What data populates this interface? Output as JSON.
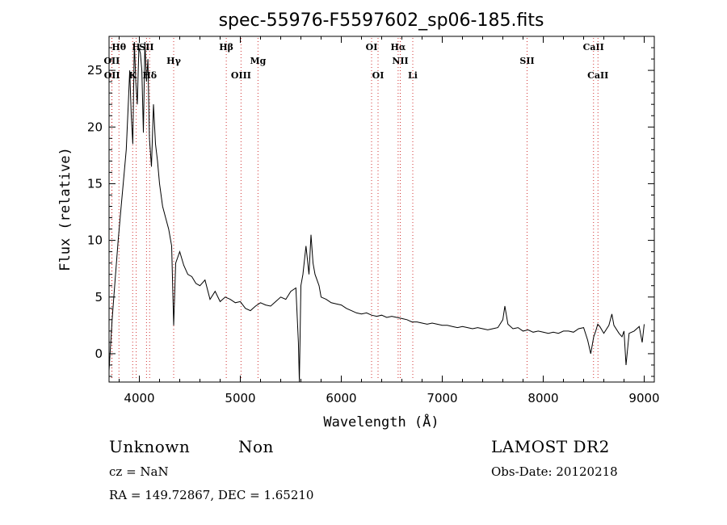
{
  "chart_data": {
    "type": "line",
    "title": "spec-55976-F5597602_sp06-185.fits",
    "xlabel": "Wavelength (Å)",
    "ylabel": "Flux (relative)",
    "xlim": [
      3700,
      9100
    ],
    "ylim": [
      -2.5,
      28
    ],
    "x_ticks": [
      4000,
      5000,
      6000,
      7000,
      8000,
      9000
    ],
    "y_ticks": [
      0,
      5,
      10,
      15,
      20,
      25
    ],
    "grid": false,
    "series": [
      {
        "x": [
          3700,
          3730,
          3760,
          3790,
          3820,
          3850,
          3870,
          3890,
          3905,
          3920,
          3935,
          3950,
          3965,
          3980,
          3995,
          4010,
          4025,
          4040,
          4055,
          4070,
          4085,
          4100,
          4120,
          4140,
          4160,
          4180,
          4200,
          4230,
          4260,
          4290,
          4320,
          4340,
          4360,
          4400,
          4440,
          4480,
          4520,
          4560,
          4600,
          4650,
          4700,
          4750,
          4800,
          4850,
          4900,
          4950,
          5000,
          5050,
          5100,
          5150,
          5200,
          5250,
          5300,
          5350,
          5400,
          5450,
          5500,
          5550,
          5575,
          5585,
          5600,
          5620,
          5650,
          5680,
          5700,
          5720,
          5740,
          5760,
          5780,
          5800,
          5850,
          5900,
          5950,
          6000,
          6050,
          6100,
          6150,
          6200,
          6250,
          6300,
          6350,
          6400,
          6450,
          6500,
          6550,
          6600,
          6650,
          6700,
          6750,
          6800,
          6850,
          6900,
          6950,
          7000,
          7050,
          7100,
          7150,
          7200,
          7250,
          7300,
          7350,
          7400,
          7450,
          7500,
          7550,
          7600,
          7620,
          7650,
          7700,
          7750,
          7800,
          7850,
          7900,
          7950,
          8000,
          8050,
          8100,
          8150,
          8200,
          8250,
          8300,
          8350,
          8400,
          8440,
          8470,
          8500,
          8520,
          8540,
          8560,
          8600,
          8650,
          8680,
          8700,
          8750,
          8780,
          8800,
          8820,
          8850,
          8900,
          8950,
          8980,
          9000
        ],
        "y": [
          -1.5,
          3,
          6.5,
          10,
          13,
          16,
          18,
          22,
          25,
          21,
          18.5,
          27.5,
          24,
          22,
          27,
          26.5,
          25,
          19.5,
          27.5,
          24,
          26,
          19,
          16.5,
          22,
          18.5,
          17,
          15,
          13,
          12,
          11,
          9.5,
          2.5,
          8,
          9,
          7.8,
          7,
          6.8,
          6.2,
          6,
          6.5,
          4.8,
          5.5,
          4.6,
          5,
          4.8,
          4.5,
          4.6,
          4,
          3.8,
          4.2,
          4.5,
          4.3,
          4.2,
          4.6,
          5,
          4.8,
          5.5,
          5.8,
          1,
          -2.5,
          6,
          7,
          9.5,
          7,
          10.5,
          8,
          7,
          6.5,
          6,
          5,
          4.8,
          4.5,
          4.4,
          4.3,
          4,
          3.8,
          3.6,
          3.5,
          3.6,
          3.4,
          3.3,
          3.4,
          3.2,
          3.3,
          3.2,
          3.1,
          3,
          2.8,
          2.8,
          2.7,
          2.6,
          2.7,
          2.6,
          2.5,
          2.5,
          2.4,
          2.3,
          2.4,
          2.3,
          2.2,
          2.3,
          2.2,
          2.1,
          2.2,
          2.3,
          3,
          4.2,
          2.6,
          2.2,
          2.3,
          2,
          2.1,
          1.9,
          2,
          1.9,
          1.8,
          1.9,
          1.8,
          2,
          2,
          1.9,
          2.2,
          2.3,
          1.2,
          0,
          1.5,
          2,
          2.6,
          2.4,
          1.8,
          2.5,
          3.5,
          2.5,
          1.8,
          1.5,
          2,
          -1,
          1.8,
          2,
          2.4,
          1,
          2.6
        ]
      }
    ],
    "line_markers": [
      {
        "label": "Hθ",
        "x": 3798,
        "row": 1
      },
      {
        "label": "OII",
        "x": 3727,
        "row": 2
      },
      {
        "label": "OII",
        "x": 3729,
        "row": 3
      },
      {
        "label": "K",
        "x": 3934,
        "row": 3
      },
      {
        "label": "H",
        "x": 3969,
        "row": 1
      },
      {
        "label": "SII",
        "x": 4071,
        "row": 1
      },
      {
        "label": "Hδ",
        "x": 4102,
        "row": 3
      },
      {
        "label": "Hγ",
        "x": 4340,
        "row": 2
      },
      {
        "label": "Hβ",
        "x": 4861,
        "row": 1
      },
      {
        "label": "OIII",
        "x": 5007,
        "row": 3
      },
      {
        "label": "Mg",
        "x": 5175,
        "row": 2
      },
      {
        "label": "OI",
        "x": 6300,
        "row": 1
      },
      {
        "label": "OI",
        "x": 6364,
        "row": 3
      },
      {
        "label": "Hα",
        "x": 6563,
        "row": 1
      },
      {
        "label": "NII",
        "x": 6584,
        "row": 2
      },
      {
        "label": "Li",
        "x": 6708,
        "row": 3
      },
      {
        "label": "SII",
        "x": 7840,
        "row": 2
      },
      {
        "label": "CaII",
        "x": 8498,
        "row": 1
      },
      {
        "label": "CaII",
        "x": 8542,
        "row": 3
      }
    ],
    "marker_color": "#d03030"
  },
  "info": {
    "class_label": "Unknown",
    "subclass_label": "Non",
    "survey": "LAMOST DR2",
    "cz": "cz = NaN",
    "obs_date": "Obs-Date: 20120218",
    "radec": "RA = 149.72867, DEC =   1.65210"
  }
}
